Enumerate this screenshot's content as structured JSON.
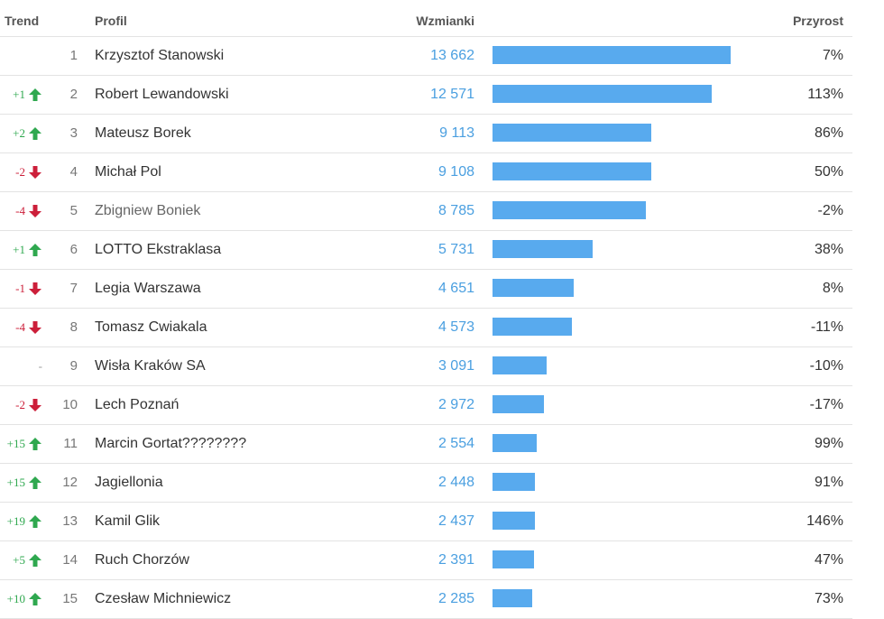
{
  "header": {
    "trend": "Trend",
    "profil": "Profil",
    "wzmianki": "Wzmianki",
    "przyrost": "Przyrost"
  },
  "colors": {
    "bar": "#58aaee",
    "value_text": "#4a9fe0",
    "trend_up": "#2fa84f",
    "trend_down": "#cc1f3a"
  },
  "bar_max_value": 13662,
  "rows": [
    {
      "trend": "",
      "direction": "none",
      "rank": "1",
      "name": "Krzysztof Stanowski",
      "mentions": "13 662",
      "mentions_num": 13662,
      "growth": "7%"
    },
    {
      "trend": "+1",
      "direction": "up",
      "rank": "2",
      "name": "Robert Lewandowski",
      "mentions": "12 571",
      "mentions_num": 12571,
      "growth": "113%"
    },
    {
      "trend": "+2",
      "direction": "up",
      "rank": "3",
      "name": "Mateusz Borek",
      "mentions": "9 113",
      "mentions_num": 9113,
      "growth": "86%"
    },
    {
      "trend": "-2",
      "direction": "down",
      "rank": "4",
      "name": "Michał Pol",
      "mentions": "9 108",
      "mentions_num": 9108,
      "growth": "50%"
    },
    {
      "trend": "-4",
      "direction": "down",
      "rank": "5",
      "name": "Zbigniew Boniek",
      "mentions": "8 785",
      "mentions_num": 8785,
      "growth": "-2%",
      "muted": true
    },
    {
      "trend": "+1",
      "direction": "up",
      "rank": "6",
      "name": "LOTTO Ekstraklasa",
      "mentions": "5 731",
      "mentions_num": 5731,
      "growth": "38%"
    },
    {
      "trend": "-1",
      "direction": "down",
      "rank": "7",
      "name": "Legia Warszawa",
      "mentions": "4 651",
      "mentions_num": 4651,
      "growth": "8%"
    },
    {
      "trend": "-4",
      "direction": "down",
      "rank": "8",
      "name": "Tomasz Cwiakala",
      "mentions": "4 573",
      "mentions_num": 4573,
      "growth": "-11%"
    },
    {
      "trend": "-",
      "direction": "none",
      "rank": "9",
      "name": "Wisła Kraków SA",
      "mentions": "3 091",
      "mentions_num": 3091,
      "growth": "-10%"
    },
    {
      "trend": "-2",
      "direction": "down",
      "rank": "10",
      "name": "Lech Poznań",
      "mentions": "2 972",
      "mentions_num": 2972,
      "growth": "-17%"
    },
    {
      "trend": "+15",
      "direction": "up",
      "rank": "11",
      "name": "Marcin Gortat????????",
      "mentions": "2 554",
      "mentions_num": 2554,
      "growth": "99%"
    },
    {
      "trend": "+15",
      "direction": "up",
      "rank": "12",
      "name": "Jagiellonia",
      "mentions": "2 448",
      "mentions_num": 2448,
      "growth": "91%"
    },
    {
      "trend": "+19",
      "direction": "up",
      "rank": "13",
      "name": "Kamil Glik",
      "mentions": "2 437",
      "mentions_num": 2437,
      "growth": "146%"
    },
    {
      "trend": "+5",
      "direction": "up",
      "rank": "14",
      "name": "Ruch Chorzów",
      "mentions": "2 391",
      "mentions_num": 2391,
      "growth": "47%"
    },
    {
      "trend": "+10",
      "direction": "up",
      "rank": "15",
      "name": "Czesław Michniewicz",
      "mentions": "2 285",
      "mentions_num": 2285,
      "growth": "73%"
    }
  ]
}
